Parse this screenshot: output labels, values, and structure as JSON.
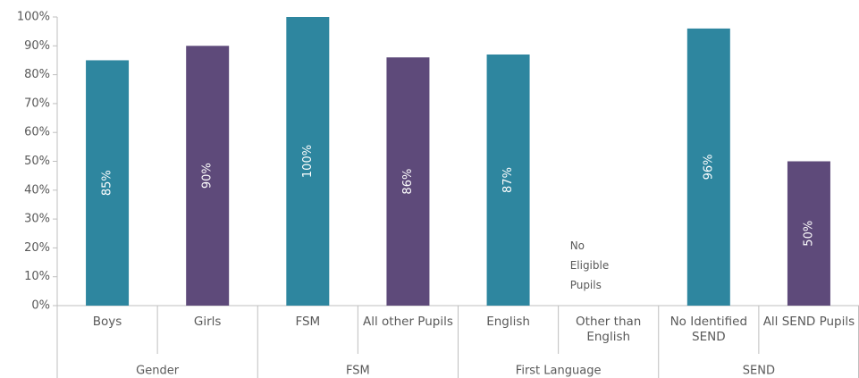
{
  "chart_data": {
    "type": "bar",
    "groups": [
      {
        "name": "Gender",
        "categories": [
          "Boys",
          "Girls"
        ],
        "values": [
          85,
          90
        ],
        "value_labels": [
          "85%",
          "90%"
        ]
      },
      {
        "name": "FSM",
        "categories": [
          "FSM",
          "All other Pupils"
        ],
        "values": [
          100,
          86
        ],
        "value_labels": [
          "100%",
          "86%"
        ]
      },
      {
        "name": "First Language",
        "categories": [
          "English",
          "Other than English"
        ],
        "values": [
          87,
          null
        ],
        "value_labels": [
          "87%",
          null
        ]
      },
      {
        "name": "SEND",
        "categories": [
          "No Identified SEND",
          "All SEND Pupils"
        ],
        "values": [
          96,
          50
        ],
        "value_labels": [
          "96%",
          "50%"
        ]
      }
    ],
    "colors": [
      "#2e869f",
      "#5e4a7a"
    ],
    "annotation": "No Eligible Pupils",
    "ylim": [
      0,
      100
    ],
    "yticks": [
      {
        "value": 0,
        "label": "0%"
      },
      {
        "value": 10,
        "label": "10%"
      },
      {
        "value": 20,
        "label": "20%"
      },
      {
        "value": 30,
        "label": "30%"
      },
      {
        "value": 40,
        "label": "40%"
      },
      {
        "value": 50,
        "label": "50%"
      },
      {
        "value": 60,
        "label": "60%"
      },
      {
        "value": 70,
        "label": "70%"
      },
      {
        "value": 80,
        "label": "80%"
      },
      {
        "value": 90,
        "label": "90%"
      },
      {
        "value": 100,
        "label": "100%"
      }
    ]
  }
}
